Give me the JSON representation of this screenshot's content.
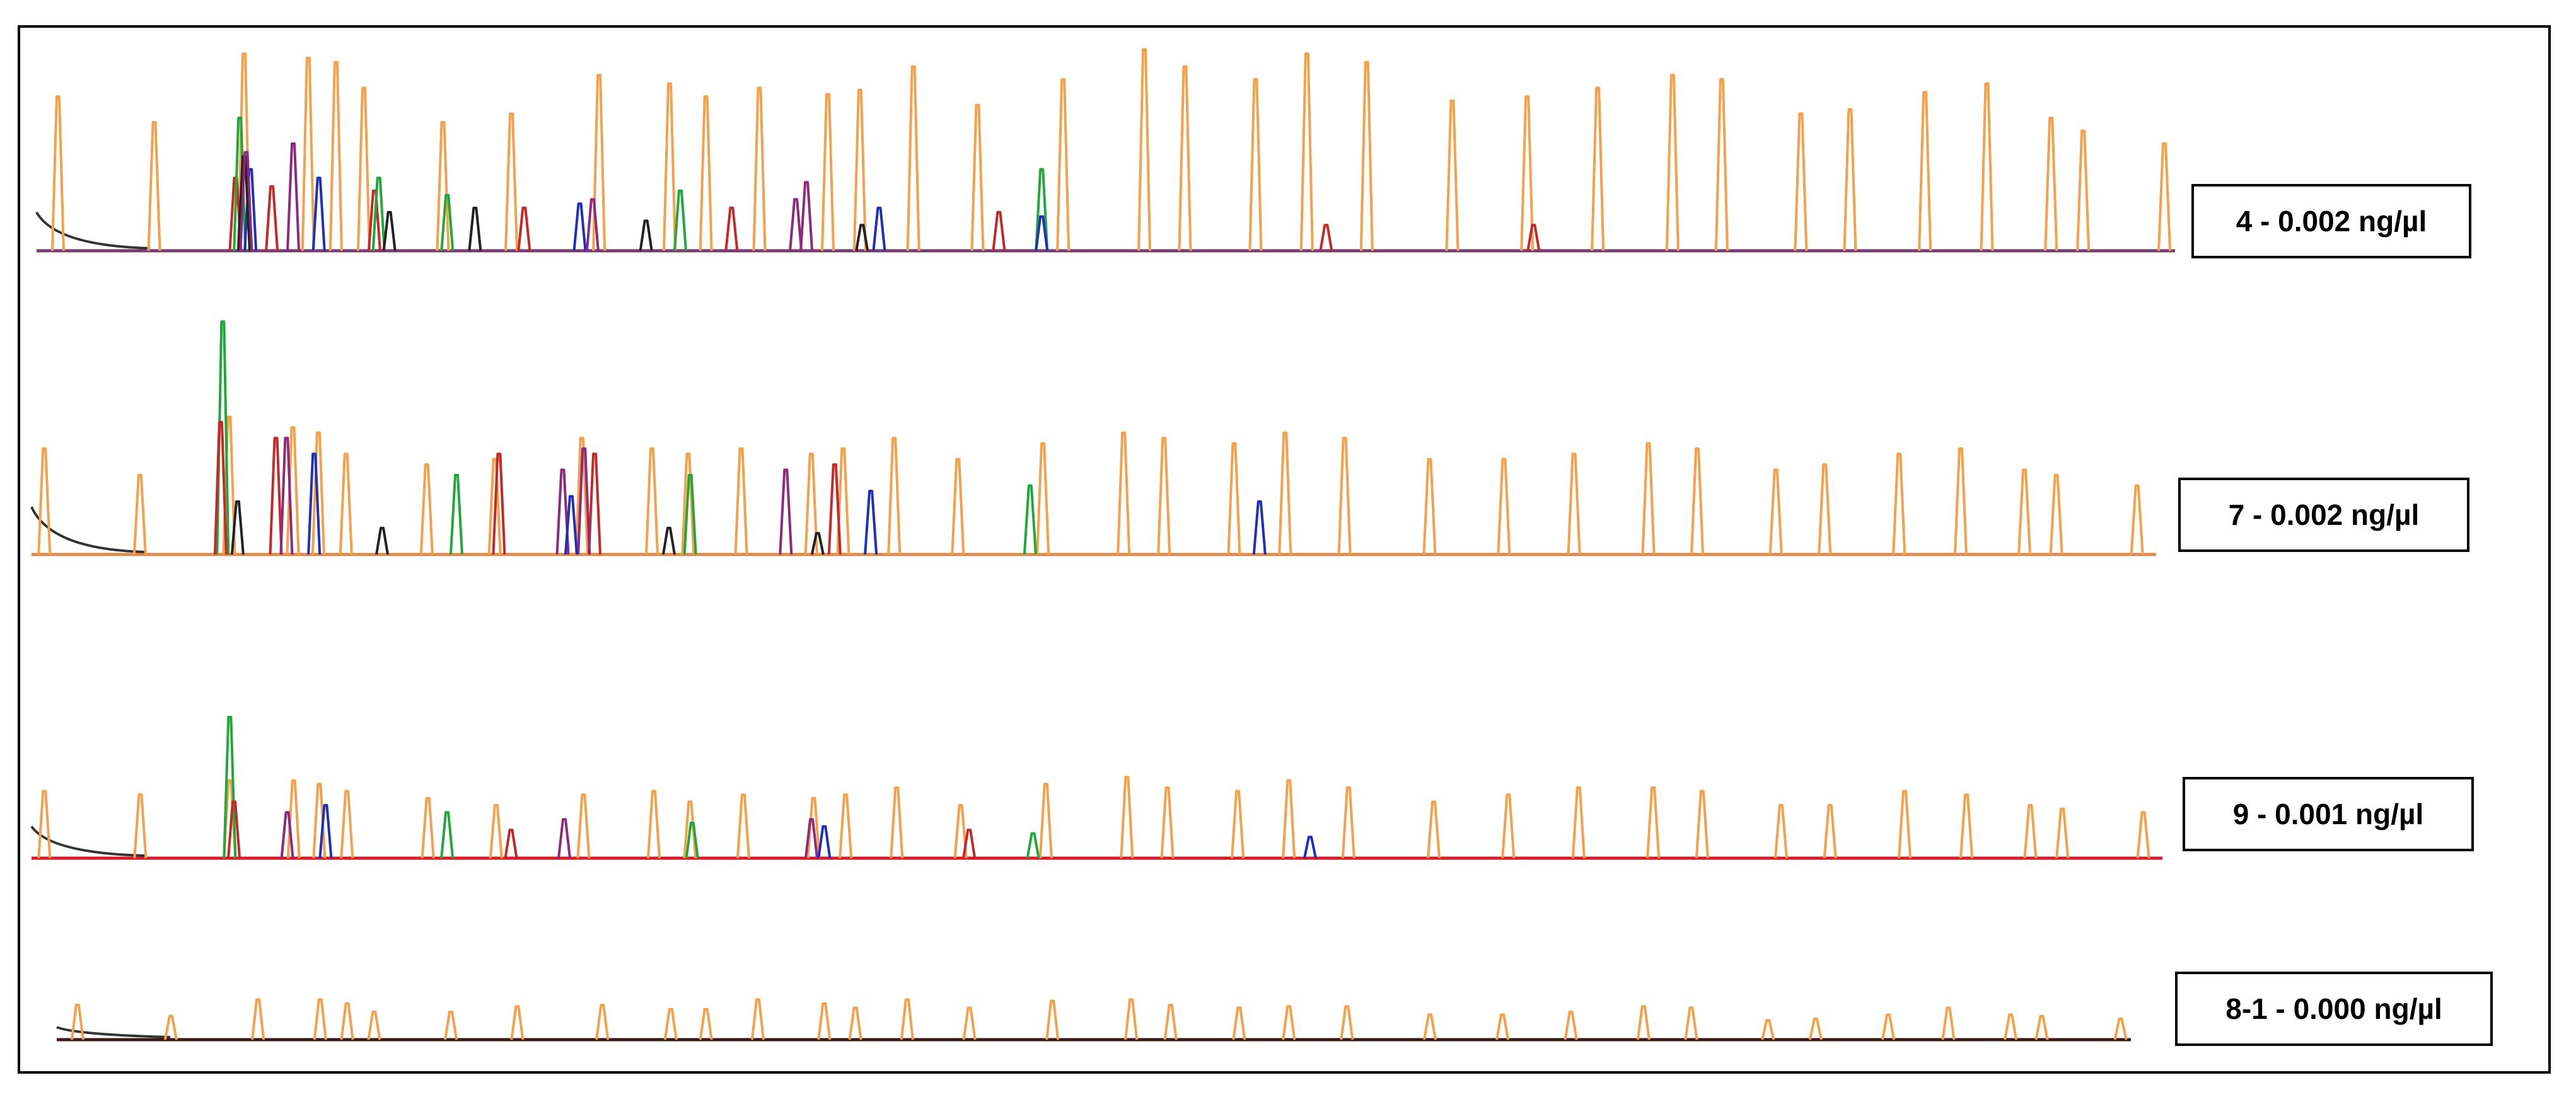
{
  "chart_data": [
    {
      "type": "line",
      "label": "4 - 0.002 ng/µl",
      "baseline_color": "#7a3b6e",
      "series": [
        {
          "color": "#f5a04a",
          "x": [
            0.01,
            0.055,
            0.097,
            0.127,
            0.14,
            0.153,
            0.19,
            0.222,
            0.263,
            0.296,
            0.313,
            0.338,
            0.37,
            0.385,
            0.41,
            0.44,
            0.48,
            0.518,
            0.537,
            0.57,
            0.594,
            0.622,
            0.662,
            0.697,
            0.73,
            0.765,
            0.788,
            0.825,
            0.848,
            0.883,
            0.912,
            0.942,
            0.957,
            0.995
          ],
          "y": [
            0.72,
            0.6,
            0.92,
            0.9,
            0.88,
            0.76,
            0.6,
            0.64,
            0.82,
            0.78,
            0.72,
            0.76,
            0.73,
            0.75,
            0.86,
            0.68,
            0.8,
            0.94,
            0.86,
            0.8,
            0.92,
            0.88,
            0.7,
            0.72,
            0.76,
            0.82,
            0.8,
            0.64,
            0.66,
            0.74,
            0.78,
            0.62,
            0.56,
            0.5
          ]
        },
        {
          "color": "#c62828",
          "x": [
            0.093,
            0.11,
            0.158,
            0.228,
            0.325,
            0.45,
            0.603,
            0.7
          ],
          "y": [
            0.34,
            0.3,
            0.28,
            0.2,
            0.2,
            0.18,
            0.12,
            0.12
          ]
        },
        {
          "color": "#21a83b",
          "x": [
            0.095,
            0.16,
            0.192,
            0.301,
            0.47
          ],
          "y": [
            0.62,
            0.34,
            0.26,
            0.28,
            0.38
          ]
        },
        {
          "color": "#1f2fb8",
          "x": [
            0.1,
            0.132,
            0.254,
            0.394,
            0.47
          ],
          "y": [
            0.38,
            0.34,
            0.22,
            0.2,
            0.16
          ]
        },
        {
          "color": "#222222",
          "x": [
            0.097,
            0.165,
            0.205,
            0.285,
            0.386
          ],
          "y": [
            0.44,
            0.18,
            0.2,
            0.14,
            0.12
          ]
        },
        {
          "color": "#8e2a7e",
          "x": [
            0.098,
            0.12,
            0.26,
            0.36,
            0.355
          ],
          "y": [
            0.46,
            0.5,
            0.24,
            0.32,
            0.24
          ]
        }
      ]
    },
    {
      "type": "line",
      "label": "7 - 0.002 ng/µl",
      "baseline_color": "#e08a4a",
      "series": [
        {
          "color": "#f5a04a",
          "x": [
            0.006,
            0.051,
            0.093,
            0.123,
            0.135,
            0.148,
            0.186,
            0.218,
            0.259,
            0.292,
            0.309,
            0.334,
            0.367,
            0.382,
            0.406,
            0.436,
            0.476,
            0.514,
            0.533,
            0.566,
            0.59,
            0.618,
            0.658,
            0.693,
            0.726,
            0.761,
            0.784,
            0.821,
            0.844,
            0.879,
            0.908,
            0.938,
            0.953,
            0.991
          ],
          "y": [
            0.4,
            0.3,
            0.52,
            0.48,
            0.46,
            0.38,
            0.34,
            0.36,
            0.44,
            0.4,
            0.38,
            0.4,
            0.38,
            0.4,
            0.44,
            0.36,
            0.42,
            0.46,
            0.44,
            0.42,
            0.46,
            0.44,
            0.36,
            0.36,
            0.38,
            0.42,
            0.4,
            0.32,
            0.34,
            0.38,
            0.4,
            0.32,
            0.3,
            0.26
          ]
        },
        {
          "color": "#21a83b",
          "x": [
            0.09,
            0.2,
            0.31,
            0.47
          ],
          "y": [
            0.88,
            0.3,
            0.3,
            0.26
          ]
        },
        {
          "color": "#c62828",
          "x": [
            0.089,
            0.115,
            0.22,
            0.265,
            0.378
          ],
          "y": [
            0.5,
            0.44,
            0.38,
            0.38,
            0.34
          ]
        },
        {
          "color": "#8e2a7e",
          "x": [
            0.12,
            0.25,
            0.26,
            0.355
          ],
          "y": [
            0.44,
            0.32,
            0.4,
            0.32
          ]
        },
        {
          "color": "#1f2fb8",
          "x": [
            0.133,
            0.254,
            0.395,
            0.578
          ],
          "y": [
            0.38,
            0.22,
            0.24,
            0.2
          ]
        },
        {
          "color": "#222222",
          "x": [
            0.097,
            0.165,
            0.3,
            0.37
          ],
          "y": [
            0.2,
            0.1,
            0.1,
            0.08
          ]
        }
      ]
    },
    {
      "type": "line",
      "label": "9 - 0.001 ng/µl",
      "baseline_color": "#d81b2a",
      "series": [
        {
          "color": "#f5a04a",
          "x": [
            0.006,
            0.051,
            0.093,
            0.123,
            0.135,
            0.148,
            0.186,
            0.218,
            0.259,
            0.292,
            0.309,
            0.334,
            0.367,
            0.382,
            0.406,
            0.436,
            0.476,
            0.514,
            0.533,
            0.566,
            0.59,
            0.618,
            0.658,
            0.693,
            0.726,
            0.761,
            0.784,
            0.821,
            0.844,
            0.879,
            0.908,
            0.938,
            0.953,
            0.991
          ],
          "y": [
            0.38,
            0.36,
            0.44,
            0.44,
            0.42,
            0.38,
            0.34,
            0.3,
            0.36,
            0.38,
            0.32,
            0.36,
            0.34,
            0.36,
            0.4,
            0.3,
            0.42,
            0.46,
            0.4,
            0.38,
            0.44,
            0.4,
            0.32,
            0.36,
            0.4,
            0.4,
            0.38,
            0.3,
            0.3,
            0.38,
            0.36,
            0.3,
            0.28,
            0.26
          ]
        },
        {
          "color": "#21a83b",
          "x": [
            0.093,
            0.195,
            0.31,
            0.47
          ],
          "y": [
            0.8,
            0.26,
            0.2,
            0.14
          ]
        },
        {
          "color": "#8e2a7e",
          "x": [
            0.12,
            0.25,
            0.366
          ],
          "y": [
            0.26,
            0.22,
            0.22
          ]
        },
        {
          "color": "#1f2fb8",
          "x": [
            0.138,
            0.372,
            0.6
          ],
          "y": [
            0.3,
            0.18,
            0.12
          ]
        },
        {
          "color": "#c62828",
          "x": [
            0.095,
            0.225,
            0.44
          ],
          "y": [
            0.32,
            0.16,
            0.16
          ]
        }
      ]
    },
    {
      "type": "line",
      "label": "8-1 - 0.000 ng/µl",
      "baseline_color": "#3a1b1b",
      "series": [
        {
          "color": "#f5a04a",
          "x": [
            0.01,
            0.055,
            0.097,
            0.127,
            0.14,
            0.153,
            0.19,
            0.222,
            0.263,
            0.296,
            0.313,
            0.338,
            0.37,
            0.385,
            0.41,
            0.44,
            0.48,
            0.518,
            0.537,
            0.57,
            0.594,
            0.622,
            0.662,
            0.697,
            0.73,
            0.765,
            0.788,
            0.825,
            0.848,
            0.883,
            0.912,
            0.942,
            0.957,
            0.995
          ],
          "y": [
            0.5,
            0.34,
            0.58,
            0.58,
            0.52,
            0.4,
            0.4,
            0.48,
            0.5,
            0.44,
            0.44,
            0.58,
            0.52,
            0.46,
            0.58,
            0.46,
            0.56,
            0.58,
            0.5,
            0.46,
            0.48,
            0.48,
            0.36,
            0.36,
            0.4,
            0.48,
            0.46,
            0.28,
            0.3,
            0.36,
            0.46,
            0.36,
            0.34,
            0.3
          ]
        }
      ]
    }
  ]
}
